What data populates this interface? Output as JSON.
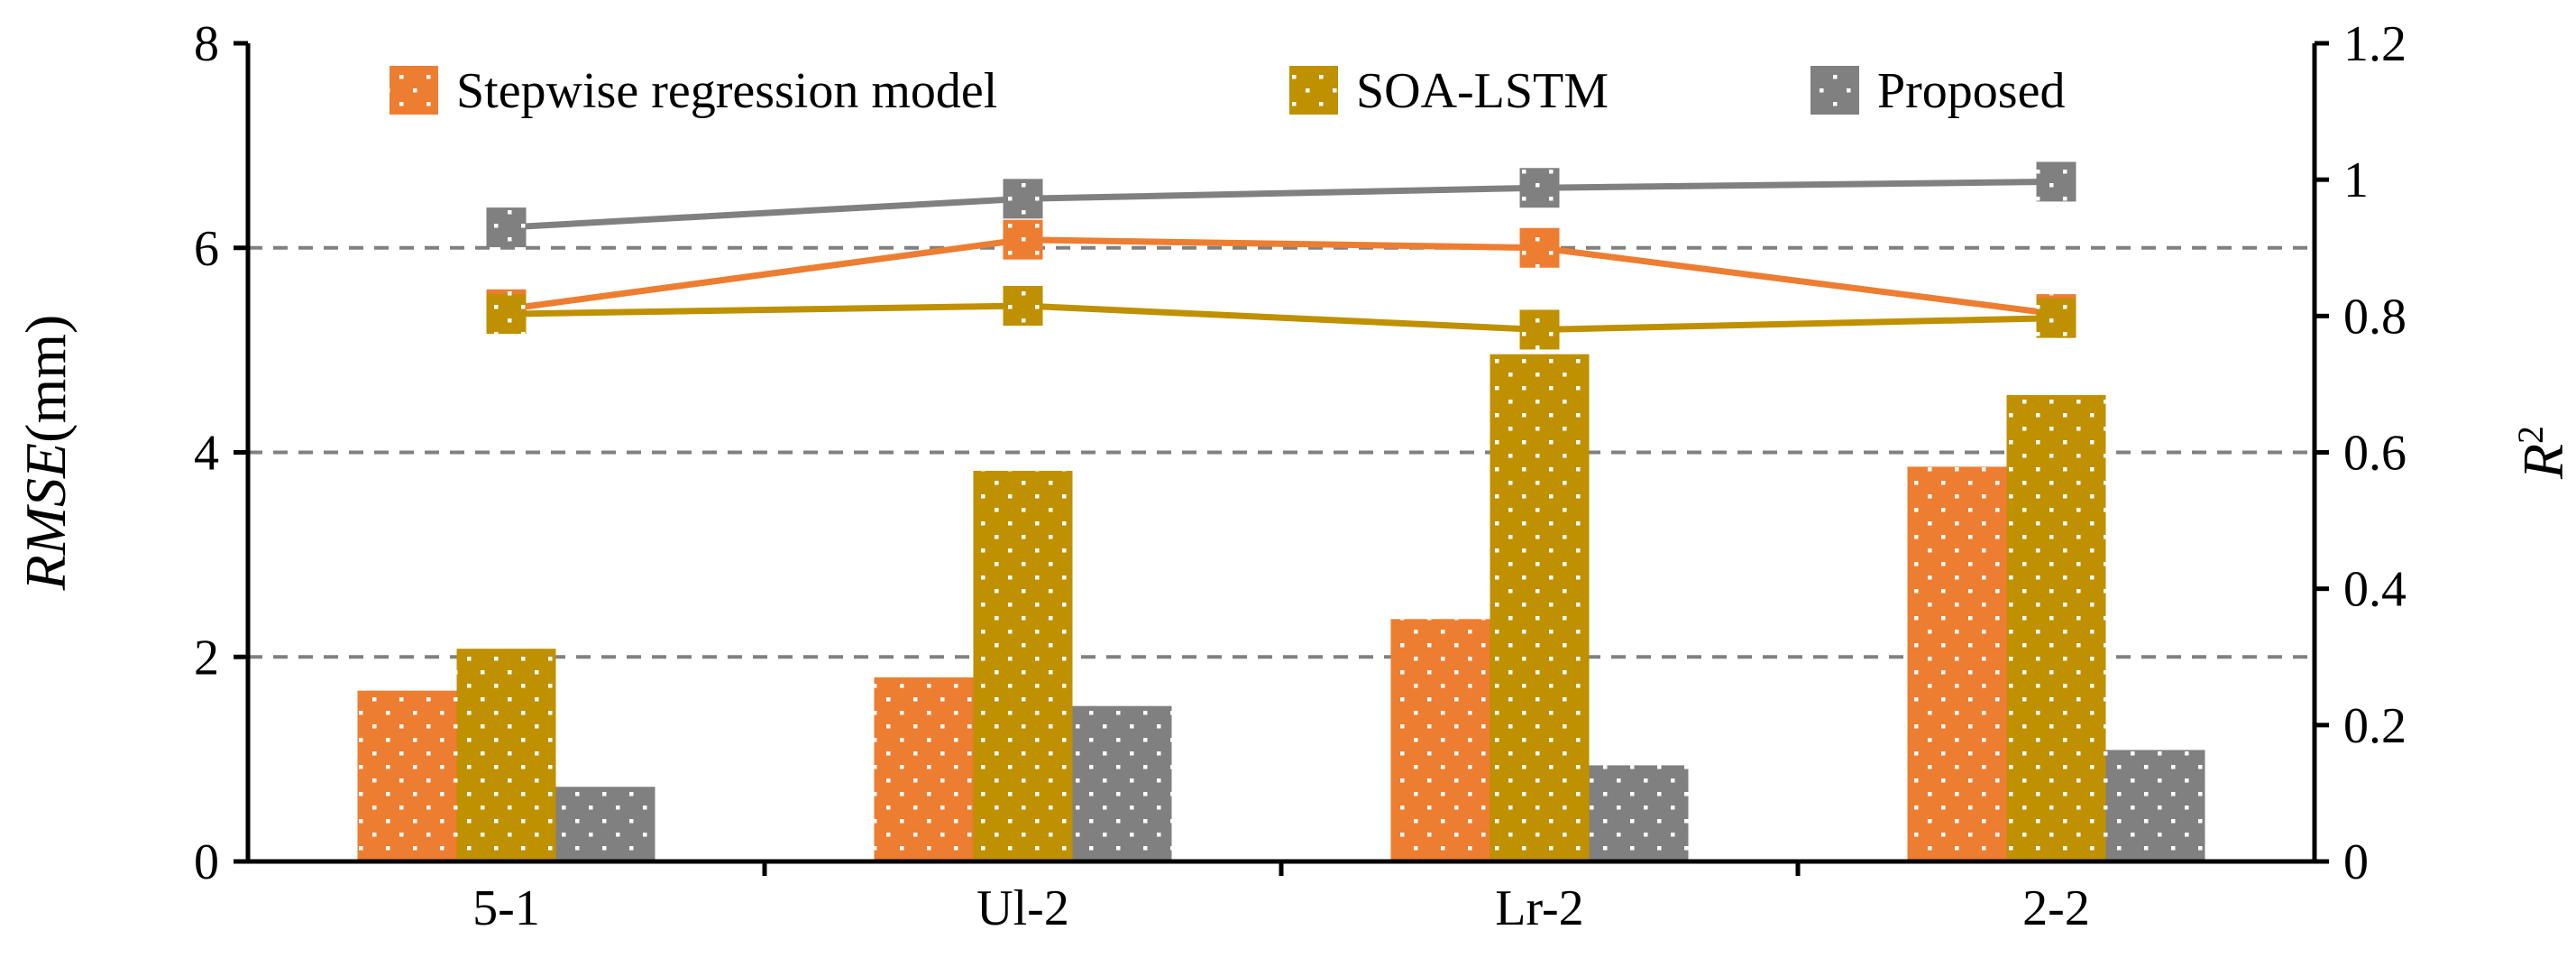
{
  "chart_data": {
    "type": "bar",
    "categories": [
      "5-1",
      "Ul-2",
      "Lr-2",
      "2-2"
    ],
    "bar_axis": {
      "ylabel_italic": "RMSE",
      "ylabel_unit": "(mm)",
      "ylim": [
        0,
        8
      ],
      "ticks": [
        "0",
        "2",
        "4",
        "6",
        "8"
      ],
      "tick_values": [
        0,
        2,
        4,
        6,
        8
      ]
    },
    "line_axis": {
      "ylabel_base": "R",
      "ylabel_sup": "2",
      "ylim": [
        0,
        1.2
      ],
      "ticks": [
        "0",
        "0.2",
        "0.4",
        "0.6",
        "0.8",
        "1",
        "1.2"
      ],
      "tick_values": [
        0,
        0.2,
        0.4,
        0.6,
        0.8,
        1.0,
        1.2
      ]
    },
    "gridlines_at": [
      2,
      4,
      6
    ],
    "series": [
      {
        "name": "Stepwise regression model",
        "color": "#ED7D31",
        "rmse": [
          1.67,
          1.8,
          2.37,
          3.86
        ],
        "r2": [
          0.81,
          0.912,
          0.9,
          0.803
        ]
      },
      {
        "name": "SOA-LSTM",
        "color": "#BF9000",
        "rmse": [
          2.08,
          3.82,
          4.96,
          4.56
        ],
        "r2": [
          0.803,
          0.815,
          0.78,
          0.797
        ]
      },
      {
        "name": "Proposed",
        "color": "#808080",
        "rmse": [
          0.73,
          1.52,
          0.94,
          1.09
        ],
        "r2": [
          0.93,
          0.972,
          0.988,
          0.997
        ]
      }
    ],
    "legend_position": "top"
  }
}
